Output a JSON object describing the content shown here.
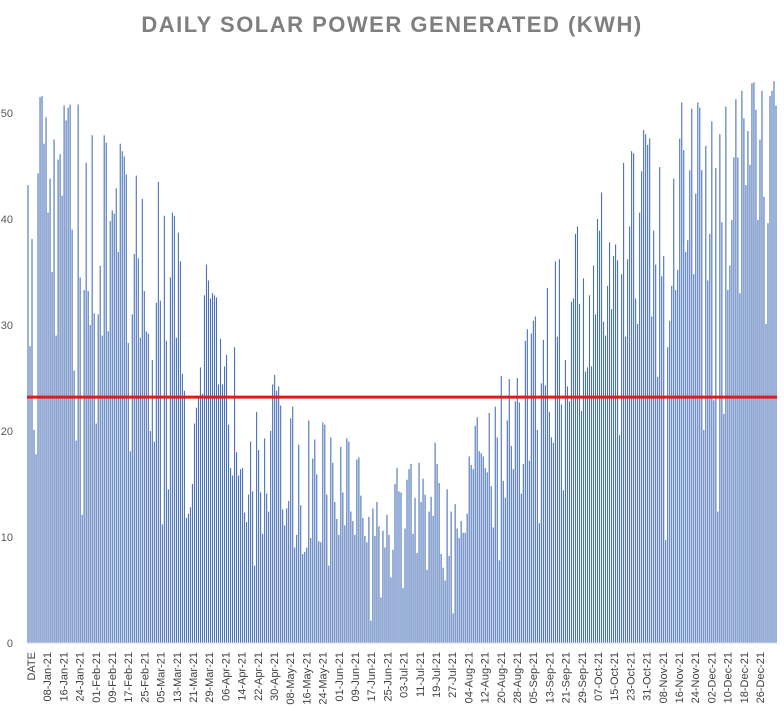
{
  "chart_data": {
    "type": "bar",
    "title": "DAILY SOLAR POWER GENERATED (KWH)",
    "xlabel": "",
    "ylabel": "",
    "ylim": [
      0,
      55
    ],
    "y_ticks": [
      0,
      10,
      20,
      30,
      40,
      50
    ],
    "x_tick_labels": [
      "DATE",
      "08-Jan-21",
      "16-Jan-21",
      "24-Jan-21",
      "01-Feb-21",
      "09-Feb-21",
      "17-Feb-21",
      "25-Feb-21",
      "05-Mar-21",
      "13-Mar-21",
      "21-Mar-21",
      "29-Mar-21",
      "06-Apr-21",
      "14-Apr-21",
      "22-Apr-21",
      "30-Apr-21",
      "08-May-21",
      "16-May-21",
      "24-May-21",
      "01-Jun-21",
      "09-Jun-21",
      "17-Jun-21",
      "25-Jun-21",
      "03-Jul-21",
      "11-Jul-21",
      "19-Jul-21",
      "27-Jul-21",
      "04-Aug-21",
      "12-Aug-21",
      "20-Aug-21",
      "28-Aug-21",
      "05-Sep-21",
      "13-Sep-21",
      "21-Sep-21",
      "29-Sep-21",
      "07-Oct-21",
      "15-Oct-21",
      "23-Oct-21",
      "31-Oct-21",
      "08-Nov-21",
      "16-Nov-21",
      "24-Nov-21",
      "02-Dec-21",
      "10-Dec-21",
      "18-Dec-21",
      "26-Dec-21"
    ],
    "series": [
      {
        "values": [
          43.2,
          28.0,
          38.1,
          20.1,
          17.8,
          44.3,
          51.5,
          51.6,
          47.1,
          49.6,
          40.6,
          43.8,
          35.0,
          47.5,
          29.0,
          45.6,
          46.1,
          42.2,
          50.7,
          49.3,
          50.5,
          50.8,
          39.0,
          25.7,
          19.1,
          50.8,
          34.5,
          12.1,
          33.3,
          45.3,
          33.2,
          30.0,
          47.9,
          31.1,
          20.7,
          31.0,
          35.6,
          29.0,
          47.9,
          47.2,
          29.4,
          39.8,
          40.8,
          40.5,
          42.9,
          36.9,
          47.1,
          46.4,
          45.9,
          44.2,
          28.3,
          18.1,
          31.0,
          36.7,
          44.1,
          36.3,
          28.8,
          41.9,
          33.2,
          29.4,
          29.2,
          20.0,
          26.7,
          19.0,
          32.1,
          43.5,
          32.3,
          11.2,
          40.3,
          28.5,
          14.5,
          34.5,
          40.6,
          40.3,
          28.8,
          38.7,
          36.0,
          25.4,
          23.8,
          11.8,
          12.2,
          12.8,
          15.0,
          20.7,
          22.2,
          23.2,
          26.0,
          23.5,
          32.8,
          35.7,
          34.2,
          32.5,
          33.0,
          32.8,
          32.6,
          24.4,
          28.7,
          24.4,
          26.1,
          27.2,
          20.6,
          16.5,
          15.8,
          27.9,
          18.0,
          15.8,
          16.4,
          16.5,
          12.3,
          11.4,
          14.0,
          19.0,
          14.3,
          7.3,
          21.8,
          18.2,
          14.2,
          10.3,
          19.3,
          14.1,
          12.4,
          20.0,
          24.4,
          25.3,
          23.8,
          24.2,
          22.4,
          12.6,
          11.1,
          12.7,
          13.4,
          21.2,
          22.3,
          9.0,
          10.2,
          18.7,
          13.0,
          8.4,
          8.6,
          9.0,
          21.0,
          9.9,
          17.4,
          19.2,
          15.9,
          9.6,
          9.5,
          20.8,
          20.6,
          14.0,
          7.3,
          19.4,
          17.0,
          13.3,
          11.7,
          10.2,
          18.5,
          14.2,
          11.1,
          19.3,
          19.0,
          12.4,
          11.5,
          10.2,
          17.3,
          17.5,
          13.9,
          11.8,
          10.1,
          9.5,
          11.9,
          2.1,
          12.7,
          10.1,
          13.3,
          11.0,
          4.3,
          10.6,
          9.0,
          12.1,
          10.2,
          6.2,
          8.8,
          15.0,
          16.5,
          14.3,
          14.2,
          5.2,
          10.8,
          15.4,
          16.4,
          16.9,
          10.3,
          13.7,
          8.5,
          17.0,
          13.3,
          15.5,
          14.0,
          6.9,
          12.4,
          13.8,
          12.0,
          18.9,
          16.9,
          15.1,
          8.4,
          7.1,
          5.9,
          14.5,
          8.2,
          12.4,
          2.8,
          13.1,
          10.8,
          9.9,
          11.5,
          10.4,
          10.4,
          12.2,
          17.6,
          16.8,
          16.4,
          20.5,
          21.3,
          18.1,
          17.9,
          17.6,
          16.5,
          16.1,
          21.7,
          14.8,
          10.9,
          22.3,
          19.4,
          7.8,
          25.2,
          15.3,
          13.7,
          21.0,
          24.9,
          18.6,
          16.4,
          22.8,
          25.0,
          22.7,
          14.1,
          16.9,
          28.5,
          29.6,
          17.2,
          29.2,
          30.4,
          30.8,
          20.1,
          11.3,
          24.5,
          28.6,
          24.3,
          33.5,
          21.8,
          19.4,
          18.9,
          36.0,
          28.9,
          36.2,
          22.5,
          14.4,
          26.7,
          24.2,
          22.8,
          32.2,
          32.5,
          38.6,
          39.3,
          32.0,
          21.9,
          34.4,
          25.6,
          26.0,
          32.8,
          26.1,
          35.6,
          31.0,
          40.0,
          38.9,
          42.5,
          30.3,
          29.0,
          33.7,
          37.8,
          31.5,
          36.5,
          37.6,
          36.1,
          19.6,
          34.8,
          45.3,
          28.9,
          36.2,
          39.3,
          46.4,
          46.2,
          32.5,
          30.1,
          40.6,
          44.5,
          48.4,
          48.0,
          47.0,
          47.6,
          30.8,
          38.9,
          35.7,
          25.1,
          44.9,
          34.6,
          36.5,
          9.7,
          27.9,
          30.4,
          33.7,
          43.8,
          33.3,
          35.2,
          47.6,
          51.0,
          46.5,
          36.9,
          38.0,
          44.6,
          50.4,
          34.8,
          42.4,
          51.0,
          50.5,
          44.6,
          20.1,
          46.9,
          34.2,
          38.6,
          49.2,
          22.9,
          44.8,
          12.4,
          48.0,
          39.7,
          21.6,
          50.6,
          33.3,
          35.6,
          39.9,
          45.8,
          51.3,
          45.8,
          33.0,
          52.1,
          49.5,
          43.2,
          48.3,
          45.1,
          52.8,
          52.9,
          50.3,
          39.9,
          47.5,
          52.1,
          42.1,
          30.1,
          39.6,
          51.6,
          52.1,
          53.0,
          50.7
        ]
      }
    ],
    "average_line": {
      "value": 23.2,
      "color": "#e31a1c"
    },
    "bar_color": "#4a72b8",
    "grid": false
  }
}
